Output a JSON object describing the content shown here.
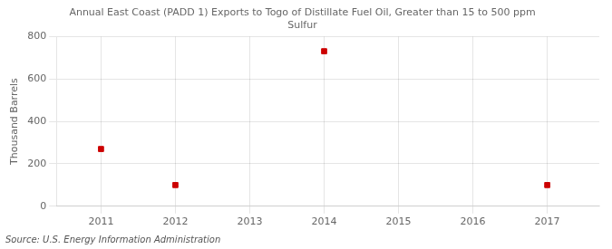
{
  "chart_data": {
    "type": "scatter",
    "title": "Annual East Coast (PADD 1) Exports to Togo of Distillate Fuel Oil, Greater than 15 to 500 ppm\nSulfur",
    "y_label": "Thousand Barrels",
    "source": "Source: U.S. Energy Information Administration",
    "x": [
      2011,
      2012,
      2014,
      2017
    ],
    "values": [
      270,
      100,
      731,
      100
    ],
    "color": "#cc0000",
    "marker": "square",
    "xlim": [
      2010.4,
      2017.7
    ],
    "xticks": [
      2011,
      2012,
      2013,
      2014,
      2015,
      2016,
      2017
    ],
    "ylim": [
      0,
      800
    ],
    "yticks": [
      0,
      200,
      400,
      600,
      800
    ],
    "grid": true
  }
}
